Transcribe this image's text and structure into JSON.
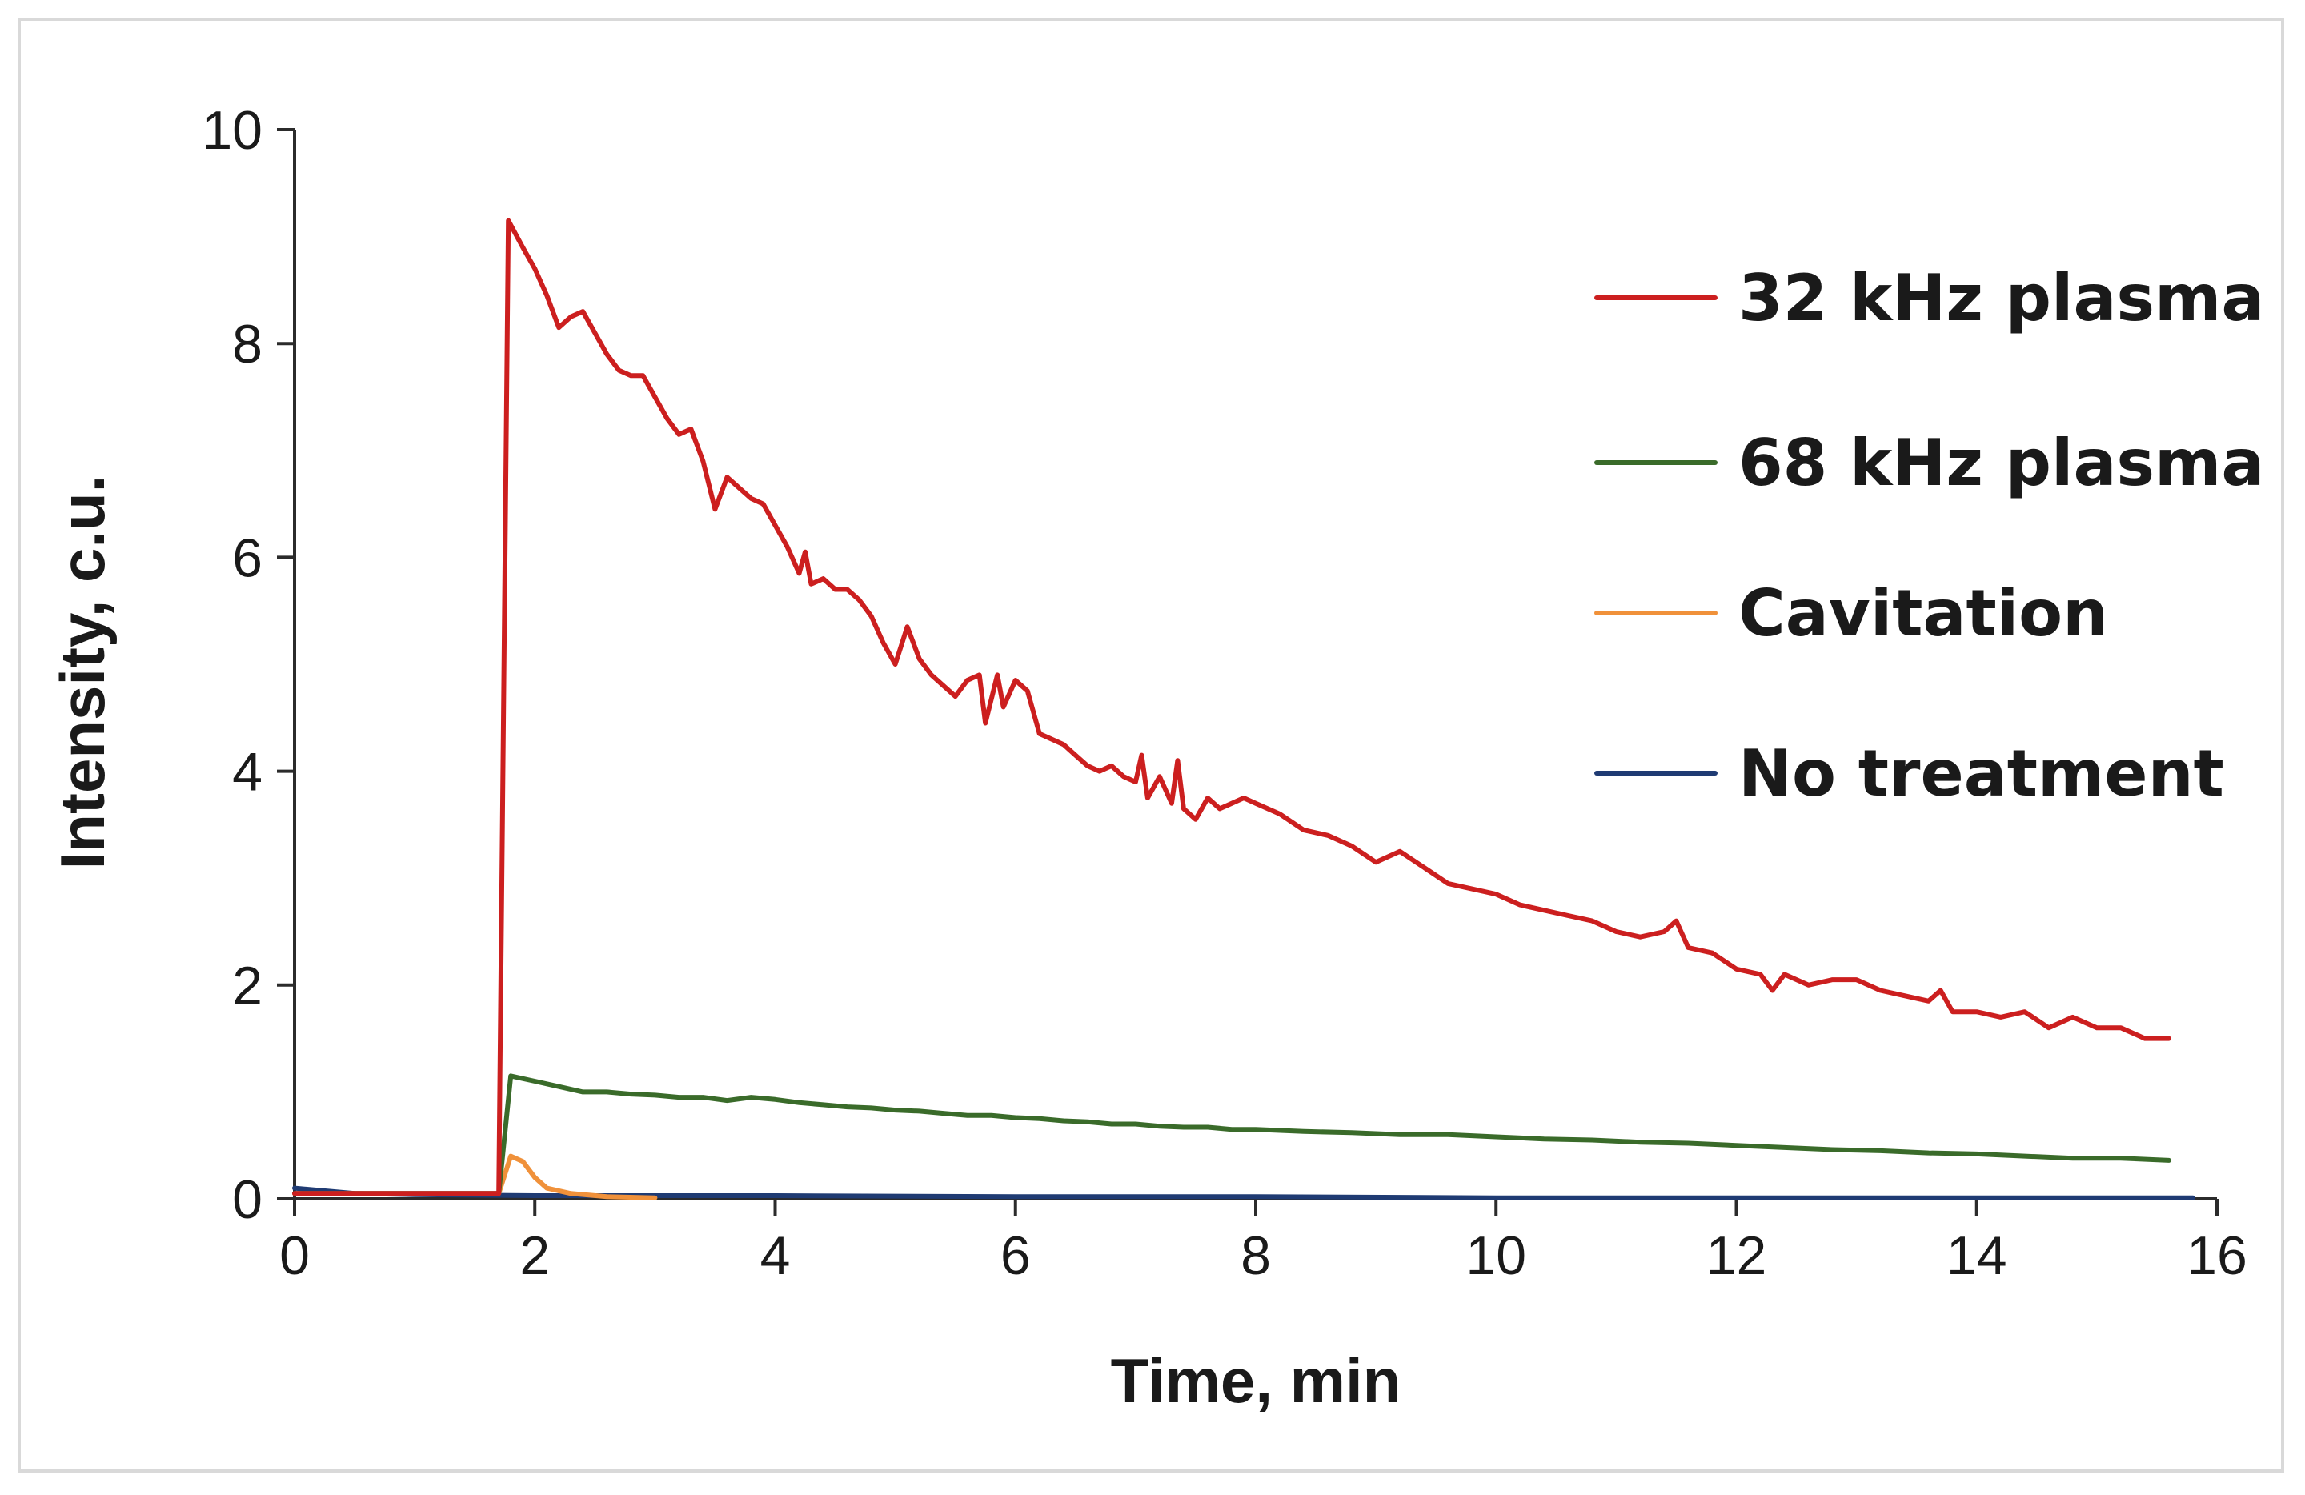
{
  "chart_data": {
    "type": "line",
    "title": "",
    "xlabel": "Time, min",
    "ylabel": "Intensity, c.u.",
    "xlim": [
      0,
      16
    ],
    "ylim": [
      0,
      10
    ],
    "x_ticks": [
      0,
      2,
      4,
      6,
      8,
      10,
      12,
      14,
      16
    ],
    "y_ticks": [
      0,
      2,
      4,
      6,
      8,
      10
    ],
    "grid": false,
    "legend_position": "right",
    "series": [
      {
        "name": "32 kHz plasma",
        "color": "#cc1f1f",
        "points": [
          [
            0,
            0.05
          ],
          [
            1.7,
            0.05
          ],
          [
            1.78,
            9.15
          ],
          [
            1.9,
            8.9
          ],
          [
            2.0,
            8.7
          ],
          [
            2.1,
            8.45
          ],
          [
            2.2,
            8.15
          ],
          [
            2.3,
            8.25
          ],
          [
            2.4,
            8.3
          ],
          [
            2.5,
            8.1
          ],
          [
            2.6,
            7.9
          ],
          [
            2.7,
            7.75
          ],
          [
            2.8,
            7.7
          ],
          [
            2.9,
            7.7
          ],
          [
            3.0,
            7.5
          ],
          [
            3.1,
            7.3
          ],
          [
            3.2,
            7.15
          ],
          [
            3.3,
            7.2
          ],
          [
            3.4,
            6.9
          ],
          [
            3.5,
            6.45
          ],
          [
            3.6,
            6.75
          ],
          [
            3.7,
            6.65
          ],
          [
            3.8,
            6.55
          ],
          [
            3.9,
            6.5
          ],
          [
            4.0,
            6.3
          ],
          [
            4.1,
            6.1
          ],
          [
            4.2,
            5.85
          ],
          [
            4.25,
            6.05
          ],
          [
            4.3,
            5.75
          ],
          [
            4.4,
            5.8
          ],
          [
            4.5,
            5.7
          ],
          [
            4.6,
            5.7
          ],
          [
            4.7,
            5.6
          ],
          [
            4.8,
            5.45
          ],
          [
            4.9,
            5.2
          ],
          [
            5.0,
            5.0
          ],
          [
            5.1,
            5.35
          ],
          [
            5.2,
            5.05
          ],
          [
            5.3,
            4.9
          ],
          [
            5.4,
            4.8
          ],
          [
            5.5,
            4.7
          ],
          [
            5.6,
            4.85
          ],
          [
            5.7,
            4.9
          ],
          [
            5.75,
            4.45
          ],
          [
            5.85,
            4.9
          ],
          [
            5.9,
            4.6
          ],
          [
            6.0,
            4.85
          ],
          [
            6.1,
            4.75
          ],
          [
            6.2,
            4.35
          ],
          [
            6.3,
            4.3
          ],
          [
            6.4,
            4.25
          ],
          [
            6.5,
            4.15
          ],
          [
            6.6,
            4.05
          ],
          [
            6.7,
            4.0
          ],
          [
            6.8,
            4.05
          ],
          [
            6.9,
            3.95
          ],
          [
            7.0,
            3.9
          ],
          [
            7.05,
            4.15
          ],
          [
            7.1,
            3.75
          ],
          [
            7.2,
            3.95
          ],
          [
            7.3,
            3.7
          ],
          [
            7.35,
            4.1
          ],
          [
            7.4,
            3.65
          ],
          [
            7.5,
            3.55
          ],
          [
            7.6,
            3.75
          ],
          [
            7.7,
            3.65
          ],
          [
            7.8,
            3.7
          ],
          [
            7.9,
            3.75
          ],
          [
            8.0,
            3.7
          ],
          [
            8.2,
            3.6
          ],
          [
            8.4,
            3.45
          ],
          [
            8.6,
            3.4
          ],
          [
            8.8,
            3.3
          ],
          [
            9.0,
            3.15
          ],
          [
            9.2,
            3.25
          ],
          [
            9.4,
            3.1
          ],
          [
            9.6,
            2.95
          ],
          [
            9.8,
            2.9
          ],
          [
            10.0,
            2.85
          ],
          [
            10.2,
            2.75
          ],
          [
            10.4,
            2.7
          ],
          [
            10.6,
            2.65
          ],
          [
            10.8,
            2.6
          ],
          [
            11.0,
            2.5
          ],
          [
            11.2,
            2.45
          ],
          [
            11.4,
            2.5
          ],
          [
            11.5,
            2.6
          ],
          [
            11.6,
            2.35
          ],
          [
            11.8,
            2.3
          ],
          [
            12.0,
            2.15
          ],
          [
            12.2,
            2.1
          ],
          [
            12.3,
            1.95
          ],
          [
            12.4,
            2.1
          ],
          [
            12.6,
            2.0
          ],
          [
            12.8,
            2.05
          ],
          [
            13.0,
            2.05
          ],
          [
            13.2,
            1.95
          ],
          [
            13.4,
            1.9
          ],
          [
            13.6,
            1.85
          ],
          [
            13.7,
            1.95
          ],
          [
            13.8,
            1.75
          ],
          [
            14.0,
            1.75
          ],
          [
            14.2,
            1.7
          ],
          [
            14.4,
            1.75
          ],
          [
            14.6,
            1.6
          ],
          [
            14.8,
            1.7
          ],
          [
            15.0,
            1.6
          ],
          [
            15.2,
            1.6
          ],
          [
            15.4,
            1.5
          ],
          [
            15.6,
            1.5
          ]
        ]
      },
      {
        "name": "68 kHz plasma",
        "color": "#3a6b2a",
        "points": [
          [
            0,
            0.05
          ],
          [
            1.7,
            0.05
          ],
          [
            1.8,
            1.15
          ],
          [
            2.0,
            1.1
          ],
          [
            2.2,
            1.05
          ],
          [
            2.4,
            1.0
          ],
          [
            2.6,
            1.0
          ],
          [
            2.8,
            0.98
          ],
          [
            3.0,
            0.97
          ],
          [
            3.2,
            0.95
          ],
          [
            3.4,
            0.95
          ],
          [
            3.6,
            0.92
          ],
          [
            3.8,
            0.95
          ],
          [
            4.0,
            0.93
          ],
          [
            4.2,
            0.9
          ],
          [
            4.4,
            0.88
          ],
          [
            4.6,
            0.86
          ],
          [
            4.8,
            0.85
          ],
          [
            5.0,
            0.83
          ],
          [
            5.2,
            0.82
          ],
          [
            5.4,
            0.8
          ],
          [
            5.6,
            0.78
          ],
          [
            5.8,
            0.78
          ],
          [
            6.0,
            0.76
          ],
          [
            6.2,
            0.75
          ],
          [
            6.4,
            0.73
          ],
          [
            6.6,
            0.72
          ],
          [
            6.8,
            0.7
          ],
          [
            7.0,
            0.7
          ],
          [
            7.2,
            0.68
          ],
          [
            7.4,
            0.67
          ],
          [
            7.6,
            0.67
          ],
          [
            7.8,
            0.65
          ],
          [
            8.0,
            0.65
          ],
          [
            8.4,
            0.63
          ],
          [
            8.8,
            0.62
          ],
          [
            9.2,
            0.6
          ],
          [
            9.6,
            0.6
          ],
          [
            10.0,
            0.58
          ],
          [
            10.4,
            0.56
          ],
          [
            10.8,
            0.55
          ],
          [
            11.2,
            0.53
          ],
          [
            11.6,
            0.52
          ],
          [
            12.0,
            0.5
          ],
          [
            12.4,
            0.48
          ],
          [
            12.8,
            0.46
          ],
          [
            13.2,
            0.45
          ],
          [
            13.6,
            0.43
          ],
          [
            14.0,
            0.42
          ],
          [
            14.4,
            0.4
          ],
          [
            14.8,
            0.38
          ],
          [
            15.2,
            0.38
          ],
          [
            15.6,
            0.36
          ]
        ]
      },
      {
        "name": "Cavitation",
        "color": "#f0913a",
        "points": [
          [
            0,
            0.05
          ],
          [
            1.7,
            0.05
          ],
          [
            1.8,
            0.4
          ],
          [
            1.9,
            0.35
          ],
          [
            2.0,
            0.2
          ],
          [
            2.1,
            0.1
          ],
          [
            2.3,
            0.05
          ],
          [
            2.6,
            0.02
          ],
          [
            3.0,
            0.01
          ]
        ]
      },
      {
        "name": "No treatment",
        "color": "#1f3b73",
        "points": [
          [
            0,
            0.1
          ],
          [
            0.5,
            0.05
          ],
          [
            1.0,
            0.04
          ],
          [
            2.0,
            0.03
          ],
          [
            4.0,
            0.03
          ],
          [
            6.0,
            0.02
          ],
          [
            8.0,
            0.02
          ],
          [
            10.0,
            0.01
          ],
          [
            12.0,
            0.01
          ],
          [
            14.0,
            0.01
          ],
          [
            15.8,
            0.01
          ]
        ]
      }
    ]
  }
}
